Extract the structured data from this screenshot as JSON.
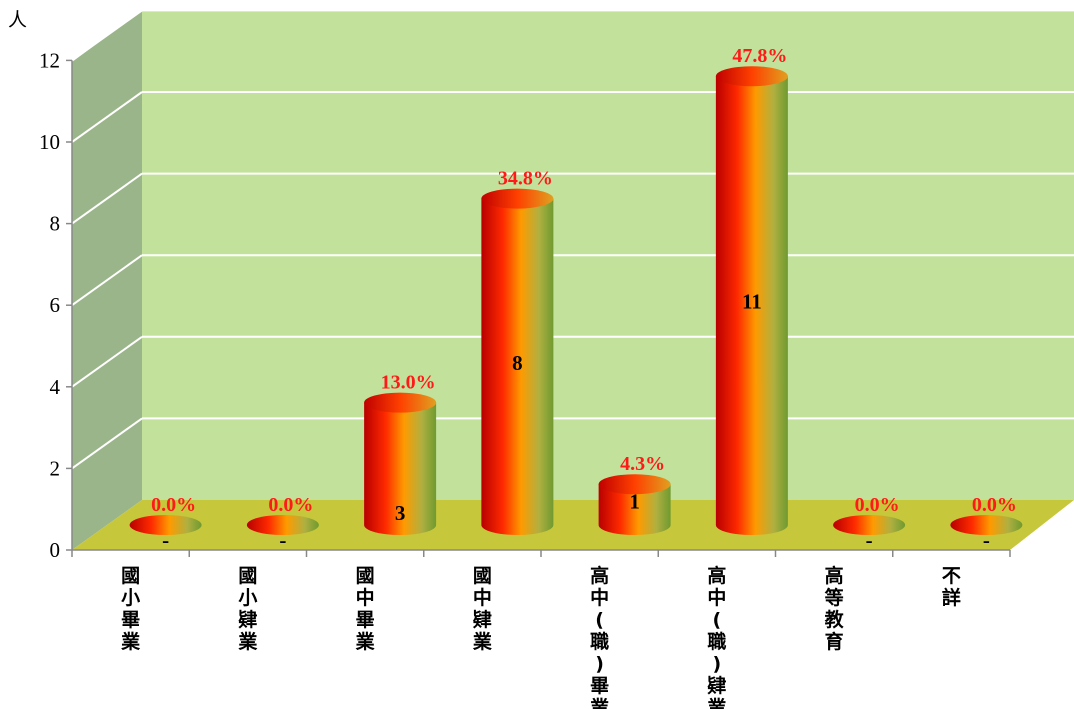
{
  "chart_data": {
    "type": "bar",
    "ylabel": "人",
    "ylim": [
      0,
      12
    ],
    "yticks": [
      "0",
      "2",
      "4",
      "6",
      "8",
      "10",
      "12"
    ],
    "categories": [
      "國小畢業",
      "國小肄業",
      "國中畢業",
      "國中肄業",
      "高中(職)畢業",
      "高中(職)肄業",
      "高等教育",
      "不詳"
    ],
    "values": [
      0,
      0,
      3,
      8,
      1,
      11,
      0,
      0
    ],
    "value_labels": [
      "-",
      "-",
      "3",
      "8",
      "1",
      "11",
      "-",
      "-"
    ],
    "percent_labels": [
      "0.0%",
      "0.0%",
      "13.0%",
      "34.8%",
      "4.3%",
      "47.8%",
      "0.0%",
      "0.0%"
    ],
    "grid": true,
    "legend": "none",
    "colors": {
      "wall": "#c2e29b",
      "side_wall": "#9bb58a",
      "floor": "#c7c73b",
      "bar_dark": "#c00000",
      "bar_mid": "#ff8c00",
      "bar_light": "#7aaa3c",
      "percent_label": "#ff1a1a"
    }
  }
}
